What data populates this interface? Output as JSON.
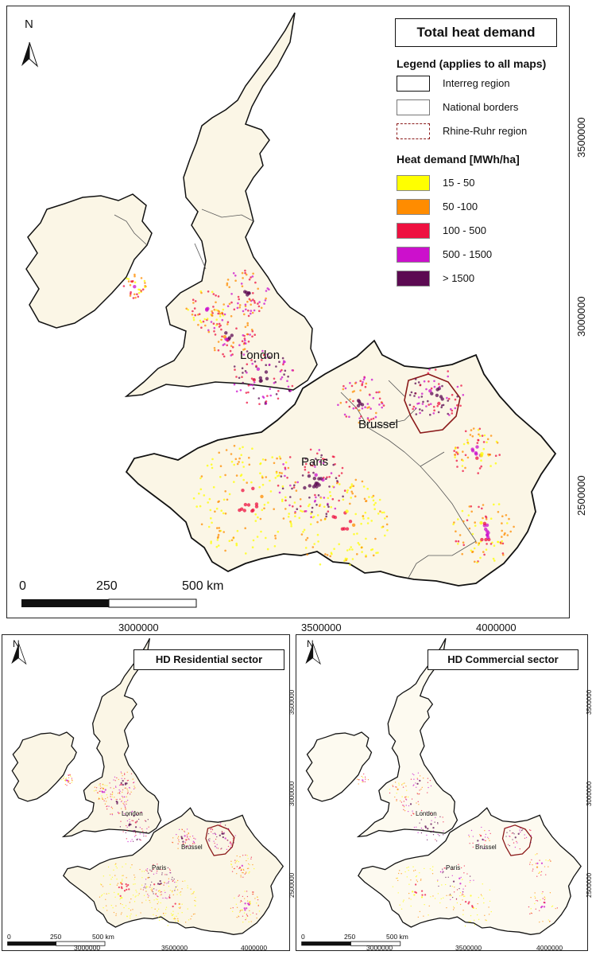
{
  "main": {
    "title": "Total heat demand",
    "north": "N",
    "legend": {
      "heading": "Legend (applies to all maps)",
      "lines": [
        {
          "label": "Interreg region",
          "style": "solid-thick"
        },
        {
          "label": "National borders",
          "style": "solid-thin"
        },
        {
          "label": "Rhine-Ruhr region",
          "style": "dashed-red"
        }
      ],
      "heat_heading": "Heat demand [MWh/ha]",
      "classes": [
        {
          "label": "15 - 50",
          "color": "#ffff00"
        },
        {
          "label": "50 -100",
          "color": "#ff8c00"
        },
        {
          "label": "100 - 500",
          "color": "#ee1140"
        },
        {
          "label": "500 - 1500",
          "color": "#cc10cc"
        },
        {
          "label": "> 1500",
          "color": "#5c0a52"
        }
      ]
    },
    "cities": {
      "london": "London",
      "brussel": "Brussel",
      "paris": "Paris"
    },
    "scale": {
      "zero": "0",
      "mid": "250",
      "end": "500 km"
    },
    "x_ticks": [
      "3000000",
      "3500000",
      "4000000"
    ],
    "y_ticks": [
      "3500000",
      "3000000",
      "2500000"
    ]
  },
  "residential": {
    "title": "HD Residential sector",
    "north": "N",
    "cities": {
      "london": "London",
      "brussel": "Brussel",
      "paris": "Paris"
    },
    "scale": {
      "zero": "0",
      "mid": "250",
      "end": "500 km"
    },
    "x_ticks": [
      "3000000",
      "3500000",
      "4000000"
    ],
    "y_ticks": [
      "3500000",
      "3000000",
      "2500000"
    ]
  },
  "commercial": {
    "title": "HD Commercial sector",
    "north": "N",
    "cities": {
      "london": "London",
      "brussel": "Brussel",
      "paris": "Paris"
    },
    "scale": {
      "zero": "0",
      "mid": "250",
      "end": "500 km"
    },
    "x_ticks": [
      "3000000",
      "3500000",
      "4000000"
    ],
    "y_ticks": [
      "3500000",
      "3000000",
      "2500000"
    ]
  },
  "colors": {
    "land": "#fbf6e6",
    "border": "#111111",
    "rhine_ruhr": "#8b1a1a"
  }
}
